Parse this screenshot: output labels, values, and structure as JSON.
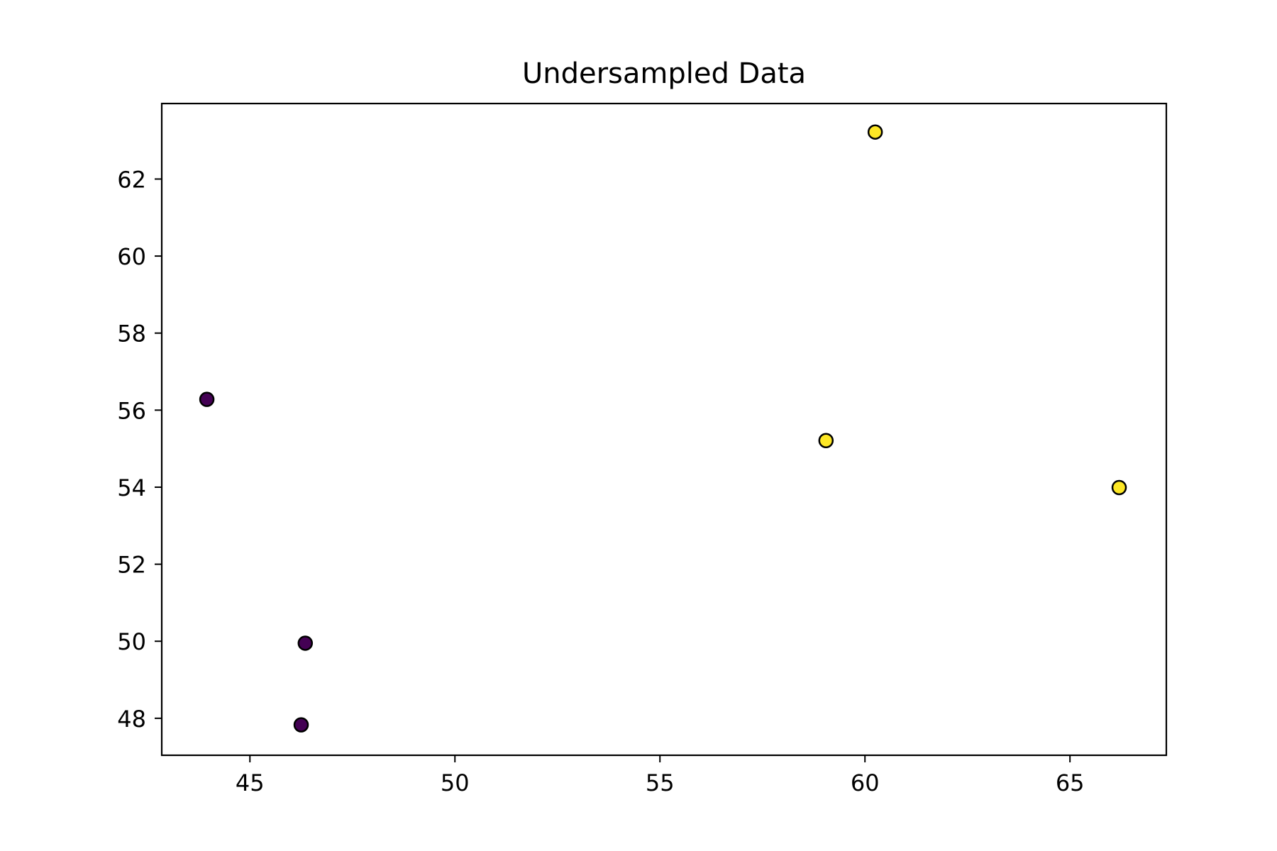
{
  "chart_data": {
    "type": "scatter",
    "title": "Undersampled Data",
    "xlabel": "",
    "ylabel": "",
    "xlim": [
      42.85,
      67.35
    ],
    "ylim": [
      47.04,
      63.96
    ],
    "xticks": [
      45,
      50,
      55,
      60,
      65
    ],
    "yticks": [
      48,
      50,
      52,
      54,
      56,
      58,
      60,
      62
    ],
    "grid": false,
    "series": [
      {
        "class": 0,
        "color": "#440154",
        "points": [
          {
            "x": 43.95,
            "y": 56.28
          },
          {
            "x": 46.35,
            "y": 49.95
          },
          {
            "x": 46.25,
            "y": 47.83
          }
        ]
      },
      {
        "class": 1,
        "color": "#fde725",
        "points": [
          {
            "x": 60.25,
            "y": 63.22
          },
          {
            "x": 59.05,
            "y": 55.21
          },
          {
            "x": 66.2,
            "y": 53.99
          }
        ]
      }
    ],
    "marker_edge_color": "#000000"
  }
}
